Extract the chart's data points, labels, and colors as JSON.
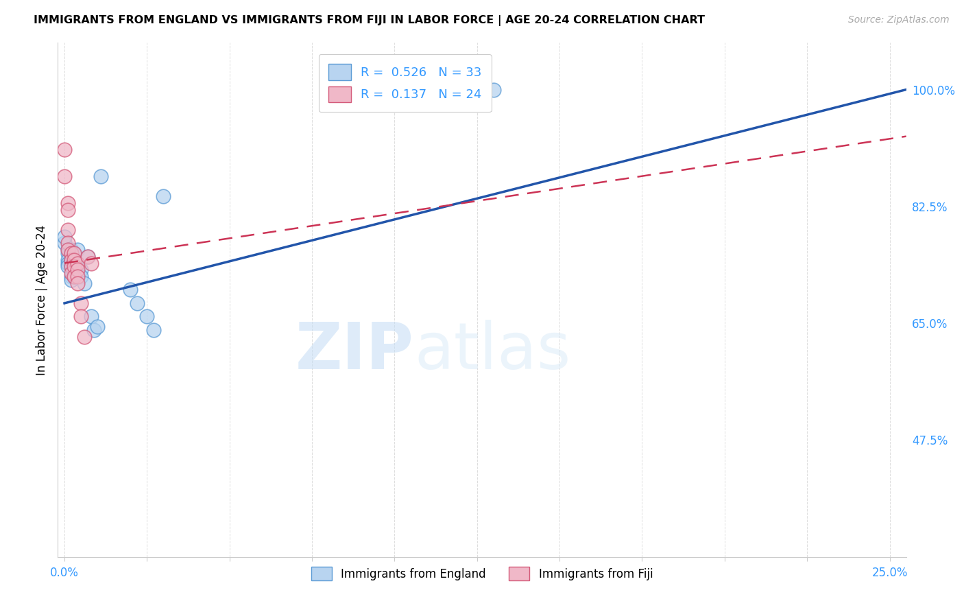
{
  "title": "IMMIGRANTS FROM ENGLAND VS IMMIGRANTS FROM FIJI IN LABOR FORCE | AGE 20-24 CORRELATION CHART",
  "source": "Source: ZipAtlas.com",
  "ylabel": "In Labor Force | Age 20-24",
  "x_ticks": [
    0.0,
    0.025,
    0.05,
    0.075,
    0.1,
    0.125,
    0.15,
    0.175,
    0.2,
    0.225,
    0.25
  ],
  "x_tick_first": "0.0%",
  "x_tick_last": "25.0%",
  "y_ticks": [
    0.35,
    0.475,
    0.65,
    0.825,
    1.0
  ],
  "y_tick_labels": [
    "",
    "47.5%",
    "65.0%",
    "82.5%",
    "100.0%"
  ],
  "xlim": [
    -0.002,
    0.255
  ],
  "ylim": [
    0.3,
    1.07
  ],
  "england_R": 0.526,
  "england_N": 33,
  "fiji_R": 0.137,
  "fiji_N": 24,
  "england_color": "#b8d4f0",
  "england_edge_color": "#5b9bd5",
  "fiji_color": "#f0b8c8",
  "fiji_edge_color": "#d45b7a",
  "england_line_color": "#2255aa",
  "fiji_line_color": "#cc3355",
  "watermark_zip": "ZIP",
  "watermark_atlas": "atlas",
  "england_x": [
    0.0,
    0.0,
    0.001,
    0.001,
    0.001,
    0.001,
    0.001,
    0.002,
    0.002,
    0.002,
    0.002,
    0.002,
    0.002,
    0.003,
    0.003,
    0.003,
    0.003,
    0.004,
    0.004,
    0.005,
    0.005,
    0.006,
    0.007,
    0.008,
    0.009,
    0.01,
    0.011,
    0.02,
    0.022,
    0.025,
    0.027,
    0.03,
    0.13
  ],
  "england_y": [
    0.77,
    0.78,
    0.76,
    0.755,
    0.745,
    0.74,
    0.735,
    0.76,
    0.755,
    0.745,
    0.735,
    0.72,
    0.715,
    0.755,
    0.74,
    0.73,
    0.72,
    0.76,
    0.74,
    0.73,
    0.72,
    0.71,
    0.75,
    0.66,
    0.64,
    0.645,
    0.87,
    0.7,
    0.68,
    0.66,
    0.64,
    0.84,
    1.0
  ],
  "fiji_x": [
    0.0,
    0.0,
    0.001,
    0.001,
    0.001,
    0.001,
    0.001,
    0.002,
    0.002,
    0.002,
    0.002,
    0.003,
    0.003,
    0.003,
    0.003,
    0.004,
    0.004,
    0.004,
    0.004,
    0.005,
    0.005,
    0.006,
    0.007,
    0.008
  ],
  "fiji_y": [
    0.91,
    0.87,
    0.83,
    0.82,
    0.79,
    0.77,
    0.76,
    0.755,
    0.745,
    0.735,
    0.725,
    0.755,
    0.745,
    0.735,
    0.72,
    0.74,
    0.73,
    0.72,
    0.71,
    0.68,
    0.66,
    0.63,
    0.75,
    0.74
  ],
  "england_line_x": [
    0.0,
    0.255
  ],
  "england_line_y": [
    0.68,
    1.0
  ],
  "fiji_line_x": [
    0.0,
    0.255
  ],
  "fiji_line_y": [
    0.74,
    0.93
  ]
}
